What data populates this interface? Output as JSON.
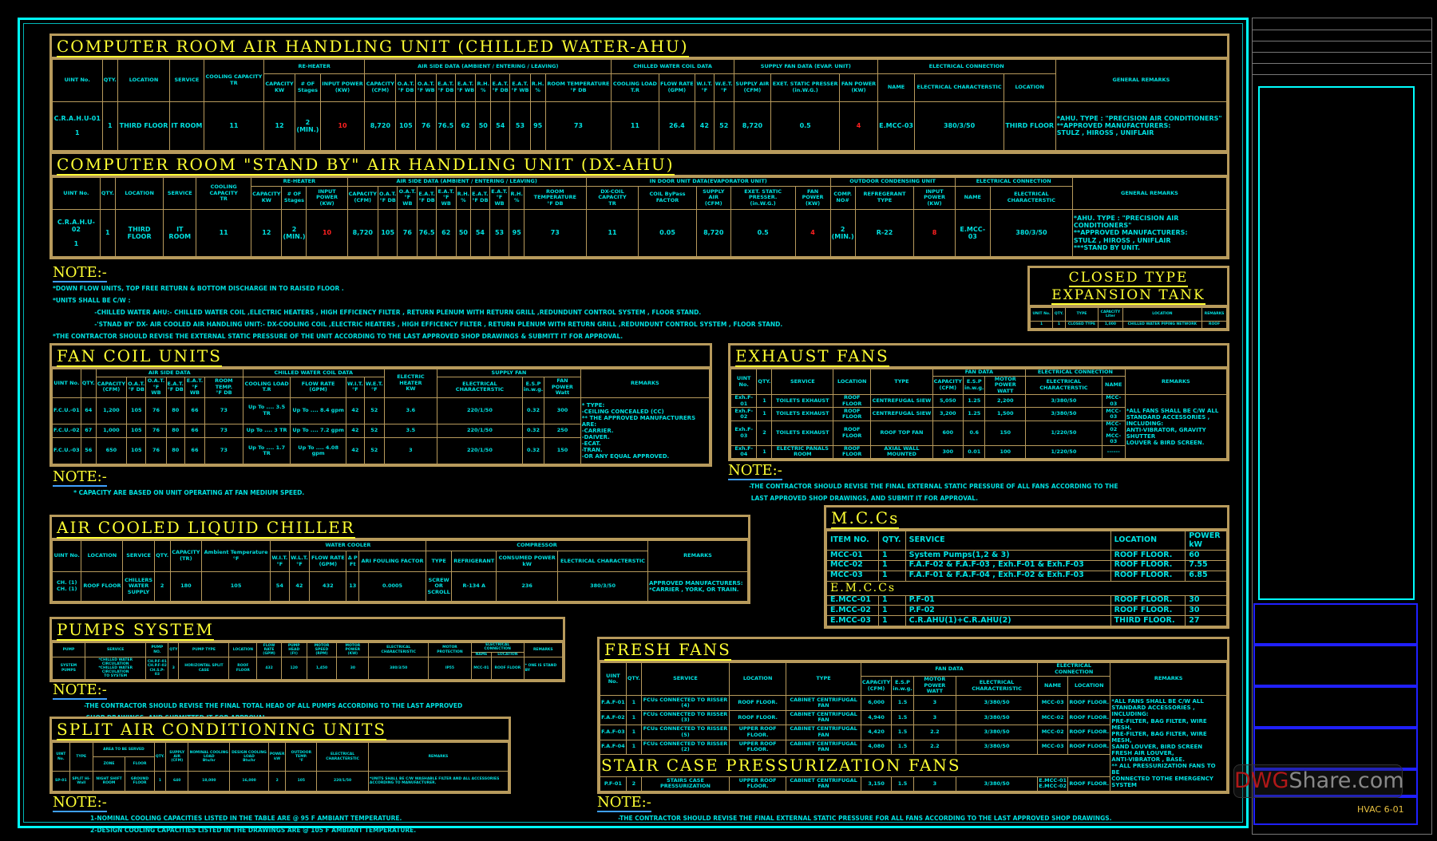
{
  "title_block": {
    "sheet_no": "HVAC 6-01",
    "watermark_a": "DWG",
    "watermark_b": "Share.com"
  },
  "colors": {
    "frame": "#00ffff",
    "table_border": "#b79a5c",
    "title": "#ffff33",
    "text": "#00e0e0",
    "highlight": "#ff2020"
  },
  "crahu": {
    "title": "COMPUTER ROOM AIR HANDLING UNIT (CHILLED WATER-AHU)",
    "groups": [
      [
        null,
        1
      ],
      [
        null,
        1
      ],
      [
        null,
        1
      ],
      [
        null,
        1
      ],
      [
        null,
        1
      ],
      [
        "RE-HEATER",
        3
      ],
      [
        "AIR SIDE DATA (AMBIENT / ENTERING / LEAVING)",
        10
      ],
      [
        "CHILLED WATER COIL DATA",
        4
      ],
      [
        "SUPPLY FAN DATA (EVAP. UNIT)",
        3
      ],
      [
        "ELECTRICAL CONNECTION",
        3
      ],
      [
        null,
        1
      ]
    ],
    "cols": [
      "UINT No.",
      "QTY.",
      "LOCATION",
      "SERVICE",
      "COOLING CAPACITY\nTR",
      "CAPACITY\nKW",
      "# OF\nStages",
      "INPUT POWER\n(KW)",
      "CAPACITY\n(CFM)",
      "O.A.T.\n°F DB",
      "O.A.T.\n°F WB",
      "E.A.T.\n°F DB",
      "E.A.T.\n°F WB",
      "R.H.\n%",
      "E.A.T.\n°F DB",
      "E.A.T.\n°F WB",
      "R.H.\n%",
      "ROOM TEMPERATURE\n°F DB",
      "COOLING LOAD\nT.R",
      "FLOW RATE\n(GPM)",
      "W.I.T.\n°F",
      "W.E.T.\n°F",
      "SUPPLY AIR\n(CFM)",
      "EXET. STATIC PRESSER\n(in.W.G.)",
      "FAN POWER\n(KW)",
      "NAME",
      "ELECTRICAL CHARACTERSTIC",
      "LOCATION",
      "GENERAL REMARKS"
    ],
    "red": [
      7,
      24
    ],
    "rows": [
      [
        "C.R.A.H.U-01\n\n1",
        "1",
        "THIRD FLOOR",
        "IT ROOM",
        "11",
        "12",
        "2\n(MIN.)",
        "10",
        "8,720",
        "105",
        "76",
        "76.5",
        "62",
        "50",
        "54",
        "53",
        "95",
        "73",
        "11",
        "26.4",
        "42",
        "52",
        "8,720",
        "0.5",
        "4",
        "E.MCC-03",
        "380/3/50",
        "THIRD FLOOR"
      ]
    ],
    "remarks": "*AHU. TYPE : \"PRECISION AIR CONDITIONERS\"\n**APPROVED MANUFACTURERS:\n        STULZ , HIROSS , UNIFLAIR"
  },
  "dxahu": {
    "title": "COMPUTER ROOM \"STAND BY\" AIR HANDLING UNIT (DX-AHU)",
    "groups": [
      [
        null,
        1
      ],
      [
        null,
        1
      ],
      [
        null,
        1
      ],
      [
        null,
        1
      ],
      [
        null,
        1
      ],
      [
        "RE-HEATER",
        3
      ],
      [
        "AIR SIDE DATA (AMBIENT / ENTERING / LEAVING)",
        10
      ],
      [
        "IN DOOR UNIT DATA(EVAPORATOR UNIT)",
        5
      ],
      [
        "OUTDOOR CONDENSING UNIT",
        3
      ],
      [
        "ELECTRICAL CONNECTION",
        2
      ],
      [
        null,
        1
      ]
    ],
    "cols": [
      "UINT No.",
      "QTY.",
      "LOCATION",
      "SERVICE",
      "COOLING CAPACITY\nTR",
      "CAPACITY\nKW",
      "# OF\nStages",
      "INPUT POWER\n(KW)",
      "CAPACITY\n(CFM)",
      "O.A.T.\n°F DB",
      "O.A.T.\n°F WB",
      "E.A.T.\n°F DB",
      "E.A.T.\n°F WB",
      "R.H.\n%",
      "E.A.T.\n°F DB",
      "E.A.T.\n°F WB",
      "R.H.\n%",
      "ROOM TEMPERATURE\n°F DB",
      "DX-COIL CAPACITY\nTR",
      "COIL ByPass FACTOR",
      "SUPPLY AIR\n(CFM)",
      "EXET. STATIC PRESSER.\n(in.W.G.)",
      "FAN POWER\n(KW)",
      "COMP.\nNO#",
      "REFREGERANT TYPE",
      "INPUT POWER\n(KW)",
      "NAME",
      "ELECTRICAL CHARACTERSTIC",
      "GENERAL REMARKS"
    ],
    "red": [
      7,
      22,
      25
    ],
    "rows": [
      [
        "C.R.A.H.U-02\n\n1",
        "1",
        "THIRD FLOOR",
        "IT ROOM",
        "11",
        "12",
        "2\n(MIN.)",
        "10",
        "8,720",
        "105",
        "76",
        "76.5",
        "62",
        "50",
        "54",
        "53",
        "95",
        "73",
        "11",
        "0.05",
        "8,720",
        "0.5",
        "4",
        "2\n(MIN.)",
        "R-22",
        "8",
        "E.MCC-03",
        "380/3/50"
      ]
    ],
    "remarks": "*AHU. TYPE : \"PRECISION AIR CONDITIONERS\"\n**APPROVED MANUFACTURERS:\n        STULZ , HIROSS , UNIFLAIR\n***STAND BY UNIT."
  },
  "note1": {
    "label": "NOTE:-",
    "lines": [
      "*DOWN FLOW UNITS, TOP FREE RETURN & BOTTOM DISCHARGE IN TO RAISED FLOOR .",
      "*UNITS SHALL BE C/W :",
      "                    -CHILLED WATER AHU:- CHILLED WATER COIL ,ELECTRIC HEATERS , HIGH EFFICENCY FILTER , RETURN PLENUM WITH RETURN GRILL ,REDUNDUNT CONTROL SYSTEM , FLOOR STAND.",
      "                    -'STNAD BY' DX- AIR COOLED AIR HANDLING UNIT:- DX-COOLING COIL ,ELECTRIC HEATERS , HIGH EFFICENCY FILTER , RETURN PLENUM WITH RETURN GRILL ,REDUNDUNT CONTROL SYSTEM , FLOOR STAND.",
      "*THE CONTRACTOR SHOULD REVISE THE EXTERNAL STATIC PRESSURE OF THE UNIT ACCORDING TO THE LAST APPROVED SHOP DRAWINGS & SUBMITT IT FOR APPROVAL."
    ]
  },
  "tank": {
    "title": "CLOSED TYPE\nEXPANSION TANK",
    "cols": [
      "UNIT No.",
      "QTY.",
      "TYPE",
      "CAPACITY\nLiter",
      "LOCATION",
      "REMARKS"
    ],
    "rows": [
      [
        "1",
        "1",
        "CLOSED TYPE",
        "1,000",
        "CHILLED WATER PIPING NETWORK",
        "ROOF"
      ]
    ]
  },
  "fcu": {
    "title": "FAN COIL UNITS",
    "groups": [
      [
        null,
        1
      ],
      [
        null,
        1
      ],
      [
        "AIR SIDE DATA",
        6
      ],
      [
        "CHILLED WATER COIL DATA",
        4
      ],
      [
        null,
        1
      ],
      [
        "SUPPLY FAN",
        3
      ],
      [
        null,
        1
      ]
    ],
    "cols": [
      "UINT No.",
      "QTY.",
      "CAPACITY\n(CFM)",
      "O.A.T.\n°F DB",
      "O.A.T.\n°F WB",
      "E.A.T.\n°F DB",
      "E.A.T.\n°F WB",
      "ROOM TEMP.\n°F DB",
      "COOLING LOAD\nT.R",
      "FLOW RATE\n(GPM)",
      "W.I.T.\n°F",
      "W.E.T.\n°F",
      "ELECTRIC HEATER\nKW",
      "ELECTRICAL CHARACTERSTIC",
      "E.S.P\nin.w.g.",
      "FAN POWER\nWatt",
      "REMARKS"
    ],
    "rows": [
      [
        "F.C.U.-01",
        "64",
        "1,200",
        "105",
        "76",
        "80",
        "66",
        "73",
        "Up To .... 3.5 TR",
        "Up To .... 8.4 gpm",
        "42",
        "52",
        "3.6",
        "220/1/50",
        "0.32",
        "300"
      ],
      [
        "F.C.U.-02",
        "67",
        "1,000",
        "105",
        "76",
        "80",
        "66",
        "73",
        "Up To .... 3 TR",
        "Up To .... 7.2 gpm",
        "42",
        "52",
        "3.5",
        "220/1/50",
        "0.32",
        "250"
      ],
      [
        "F.C.U.-03",
        "56",
        "650",
        "105",
        "76",
        "80",
        "66",
        "73",
        "Up To .... 1.7 TR",
        "Up To .... 4.08 gpm",
        "42",
        "52",
        "3",
        "220/1/50",
        "0.32",
        "150"
      ]
    ],
    "remarks": "* TYPE:\n  -CEILING CONCEALED (CC)\n** THE APPROVED MANUFACTURERS ARE:\n  -CARRIER.\n  -DAIVER.\n  -ECAT.\n  -TRAN.\n  -OR ANY EQUAL APPROVED."
  },
  "fcu_note": {
    "label": "NOTE:-",
    "lines": [
      "          * CAPACITY ARE BASED ON UNIT OPERATING AT FAN MEDIUM SPEED."
    ]
  },
  "exhaust": {
    "title": "EXHAUST FANS",
    "groups": [
      [
        null,
        1
      ],
      [
        null,
        1
      ],
      [
        null,
        1
      ],
      [
        null,
        1
      ],
      [
        null,
        1
      ],
      [
        "FAN DATA",
        3
      ],
      [
        "ELECTRICAL CONNECTION",
        2
      ],
      [
        null,
        1
      ]
    ],
    "cols": [
      "UINT No.",
      "QTY.",
      "SERVICE",
      "LOCATION",
      "TYPE",
      "CAPACITY\n(CFM)",
      "E.S.P\nin.w.g.",
      "MOTOR POWER\nWATT",
      "ELECTRICAL CHARACTERSTIC",
      "NAME",
      "REMARKS"
    ],
    "rows": [
      [
        "Exh.F-01",
        "1",
        "TOILETS EXHAUST",
        "ROOF FLOOR",
        "CENTREFUGAL SIEW",
        "5,050",
        "1.25",
        "2,200",
        "3/380/50",
        "MCC-03"
      ],
      [
        "Exh.F-02",
        "1",
        "TOILETS EXHAUST",
        "ROOF FLOOR",
        "CENTREFUGAL SIEW",
        "3,200",
        "1.25",
        "1,500",
        "3/380/50",
        "MCC-03"
      ],
      [
        "Exh.F-03",
        "2",
        "TOILETS EXHAUST",
        "ROOF FLOOR",
        "ROOF TOP FAN",
        "600",
        "0.6",
        "150",
        "1/220/50",
        "MCC-02\nMCC-03"
      ],
      [
        "Exh.F-04",
        "1",
        "ELECTRIC PANALS ROOM",
        "ROOF FLOOR",
        "AXIAL WALL MOUNTED",
        "300",
        "0.01",
        "100",
        "1/220/50",
        "------"
      ]
    ],
    "remarks": "*ALL FANS SHALL BE C/W ALL\nSTANDARD ACCESSORIES , INCLUDING:\nANTI-VIBRATOR, GRAVITY SHUTTER\nLOUVER & BIRD SCREEN."
  },
  "exh_note": {
    "label": "NOTE:-",
    "lines": [
      "          -THE CONTRACTOR SHOULD REVISE THE FINAL EXTERNAL STATIC PRESSURE OF ALL FANS ACCORDING TO THE",
      "           LAST APPROVED SHOP DRAWINGS, AND SUBMIT IT FOR APPROVAL."
    ]
  },
  "mcc": {
    "title": "M.C.Cs",
    "cols": [
      "ITEM NO.",
      "QTY.",
      "SERVICE",
      "LOCATION",
      "POWER\nkW"
    ],
    "rows": [
      [
        "MCC-01",
        "1",
        "System Pumps(1,2 & 3)",
        "ROOF FLOOR.",
        "60"
      ],
      [
        "MCC-02",
        "1",
        "F.A.F-02 & F.A.F-03 , Exh.F-01 & Exh.F-03",
        "ROOF FLOOR.",
        "7.55"
      ],
      [
        "MCC-03",
        "1",
        "F.A.F-01 & F.A.F-04 , Exh.F-02 & Exh.F-03",
        "ROOF FLOOR.",
        "6.85"
      ],
      {
        "title": "E.M.C.Cs"
      },
      [
        "E.MCC-01",
        "1",
        "P.F-01",
        "ROOF FLOOR.",
        "30"
      ],
      [
        "E.MCC-02",
        "1",
        "P.F-02",
        "ROOF FLOOR.",
        "30"
      ],
      [
        "E.MCC-03",
        "1",
        "C.R.AHU(1)+C.R.AHU(2)",
        "THIRD FLOOR.",
        "27"
      ]
    ]
  },
  "chiller": {
    "title": "AIR COOLED LIQUID CHILLER",
    "groups": [
      [
        null,
        1
      ],
      [
        null,
        1
      ],
      [
        null,
        1
      ],
      [
        null,
        1
      ],
      [
        null,
        1
      ],
      [
        null,
        1
      ],
      [
        "WATER COOLER",
        5
      ],
      [
        "COMPRESSOR",
        4
      ],
      [
        null,
        1
      ]
    ],
    "cols": [
      "UINT No.",
      "LOCATION",
      "SERVICE",
      "QTY.",
      "CAPACITY\n(TR)",
      "Ambient Temperature\n°F",
      "W.I.T.\n°F",
      "W.L.T.\n°F",
      "FLOW RATE\n(GPM)",
      "Δ P\nFt",
      "ARI FOULING FACTOR",
      "TYPE",
      "REFRIGERANT",
      "CONSUMED POWER\nkW",
      "ELECTRICAL CHARACTERSTIC",
      "REMARKS"
    ],
    "rows": [
      [
        "CH. (1)\nCH. (1)",
        "ROOF FLOOR",
        "CHILLERS\nWATER\nSUPPLY",
        "2",
        "180",
        "105",
        "54",
        "42",
        "432",
        "13",
        "0.0005",
        "SCREW\nOR\nSCROLL",
        "R-134 A",
        "236",
        "380/3/50"
      ]
    ],
    "remarks": "APPROVED MANUFACTURERS:\n*CARRIER , YORK, OR TRAIN."
  },
  "pumps": {
    "title": "PUMPS SYSTEM",
    "groups": [
      [
        null,
        1
      ],
      [
        null,
        1
      ],
      [
        null,
        1
      ],
      [
        null,
        1
      ],
      [
        null,
        1
      ],
      [
        null,
        1
      ],
      [
        null,
        1
      ],
      [
        null,
        1
      ],
      [
        null,
        1
      ],
      [
        null,
        1
      ],
      [
        null,
        1
      ],
      [
        null,
        1
      ],
      [
        "ELECTRICAL CONNECTION",
        2
      ],
      [
        null,
        1
      ]
    ],
    "cols": [
      "PUMP",
      "SERVICE",
      "PUMP NO.",
      "QTY",
      "PUMP TYPE",
      "LOCATION",
      "FLOW RATE\n(GPM)",
      "PUMP HEAD\n(Ft)",
      "MOTOR SPEED\n(RPM)",
      "MOTOR POWER\n(KW)",
      "ELECTRICAL CHARACTERISTIC",
      "MOTOR PROTECTION",
      "NAME",
      "LOCATION",
      "REMARKS"
    ],
    "rows": [
      [
        "SYSTEM PUMPS",
        "*CHILLED WATER CIRCULATION\n*CHILLED WATER CIRCULATION\nTO SYSTEM",
        "CH.P.F-01\nCH.P.F-02\nCH.S.P-03",
        "3",
        "HORIZONTAL SPLIT CASE",
        "ROOF FLOOR",
        "432",
        "120",
        "1,450",
        "30",
        "380/3/50",
        "IP55",
        "MCC-01",
        "ROOF FLOOR"
      ]
    ],
    "remarks": "* ONE IS STAND BY"
  },
  "pumps_note": {
    "label": "NOTE:-",
    "lines": [
      "               -THE CONTRACTOR SHOULD REVISE THE FINAL TOTAL HEAD OF ALL PUMPS ACCORDING TO THE LAST APPROVED",
      "                SHOP DRAWINGS, AND SUBMITTED IT FOR APPROVAL"
    ]
  },
  "split": {
    "title": "SPLIT AIR CONDITIONING UNITS",
    "groups": [
      [
        null,
        1
      ],
      [
        null,
        1
      ],
      [
        "AREA TO BE SERVED",
        2
      ],
      [
        null,
        1
      ],
      [
        null,
        1
      ],
      [
        null,
        1
      ],
      [
        null,
        1
      ],
      [
        null,
        1
      ],
      [
        null,
        1
      ],
      [
        null,
        1
      ],
      [
        null,
        1
      ]
    ],
    "cols": [
      "UINT No.",
      "TYPE",
      "ZONE",
      "FLOOR",
      "QTY.",
      "SUPPLY AIR\n(CFM)",
      "NOMINAL COOLING LOAD\nBtu/hr",
      "DESIGN COOLING LOAD\nBtu/hr",
      "POWER\nkW",
      "OUTDOOR TEMP.\n°F",
      "ELECTRICAL CHARACTERSTIC",
      "REMARKS"
    ],
    "rows": [
      [
        "SP-01",
        "SPLIT Hi-Wall",
        "NIGHT SHIFT ROOM",
        "GROUND FLOOR",
        "1",
        "640",
        "18,000",
        "16,000",
        "2",
        "105",
        "220/1/50"
      ]
    ],
    "remarks": "*UNITS SHALL BE C/W WASHABLE FILTER AND ALL ACCESSORIES ACCORDING TO MANUFACTURER."
  },
  "split_note": {
    "label": "NOTE:-",
    "lines": [
      "                  1-NOMINAL COOLING CAPACITIES LISTED IN THE TABLE ARE @ 95 F AMBIANT TEMPERATURE.",
      "                  2-DESIGN COOLING CAPACITIES LISTED IN THE DRAWINGS ARE @ 105 F AMBIANT TEMPERATURE."
    ]
  },
  "fresh": {
    "title": "FRESH FANS",
    "groups": [
      [
        null,
        1
      ],
      [
        null,
        1
      ],
      [
        null,
        1
      ],
      [
        null,
        1
      ],
      [
        null,
        1
      ],
      [
        "FAN DATA",
        4
      ],
      [
        "ELECTRICAL CONNECTION",
        2
      ],
      [
        null,
        1
      ]
    ],
    "cols": [
      "UINT No.",
      "QTY.",
      "SERVICE",
      "LOCATION",
      "TYPE",
      "CAPACITY\n(CFM)",
      "E.S.P\nin.w.g.",
      "MOTOR POWER\nWATT",
      "ELECTRICAL CHARACTERISTIC",
      "NAME",
      "LOCATION",
      "REMARKS"
    ],
    "rows": [
      [
        "F.A.F-01",
        "1",
        "FCUs CONNECTED TO  RISSER (4)",
        "ROOF FLOOR.",
        "CABINET CENTRIFUGAL FAN",
        "6,000",
        "1.5",
        "3",
        "3/380/50",
        "MCC-03",
        "ROOF FLOOR."
      ],
      [
        "F.A.F-02",
        "1",
        "FCUs CONNECTED TO  RISSER (3)",
        "ROOF FLOOR.",
        "CABINET CENTRIFUGAL FAN",
        "4,940",
        "1.5",
        "3",
        "3/380/50",
        "MCC-02",
        "ROOF FLOOR."
      ],
      [
        "F.A.F-03",
        "1",
        "FCUs CONNECTED TO  RISSER (5)",
        "UPPER ROOF FLOOR.",
        "CABINET CENTRIFUGAL FAN",
        "4,420",
        "1.5",
        "2.2",
        "3/380/50",
        "MCC-02",
        "ROOF FLOOR."
      ],
      [
        "F.A.F-04",
        "1",
        "FCUs CONNECTED TO  RISSER (2)",
        "UPPER ROOF FLOOR.",
        "CABINET CENTRIFUGAL FAN",
        "4,080",
        "1.5",
        "2.2",
        "3/380/50",
        "MCC-03",
        "ROOF FLOOR."
      ],
      {
        "title": "STAIR CASE PRESSURIZATION FANS"
      },
      [
        "P.F-01",
        "2",
        "STAIRS CASE PRESSURIZATION",
        "UPPER ROOF FLOOR.",
        "CABINET CENTRIFUGAL FAN",
        "3,150",
        "1.5",
        "3",
        "3/380/50",
        "E.MCC-01\nE.MCC-02",
        "ROOF FLOOR."
      ]
    ],
    "remarks": "*ALL FANS SHALL BE C/W ALL\n STANDARD ACCESSORIES , INCLUDING:\n PRE-FILTER, BAG FILTER, WIRE MESH,\n PRE-FILTER, BAG FILTER, WIRE MESH,\n SAND LOUVER, BIRD SCREEN\n FRESH AIR LOUVER,\n ANTI-VIBRATOR , BASE.\n** ALL PRESSURIZATION FANS TO BE\n CONNECTED TOTHE EMERGENCY SYSTEM"
  },
  "fresh_note": {
    "label": "NOTE:-",
    "lines": [
      "          -THE CONTRACTOR SHOULD REVISE THE FINAL EXTERNAL STATIC PRESSURE FOR ALL FANS ACCORDING TO THE LAST APPROVED SHOP DRAWINGS."
    ]
  }
}
